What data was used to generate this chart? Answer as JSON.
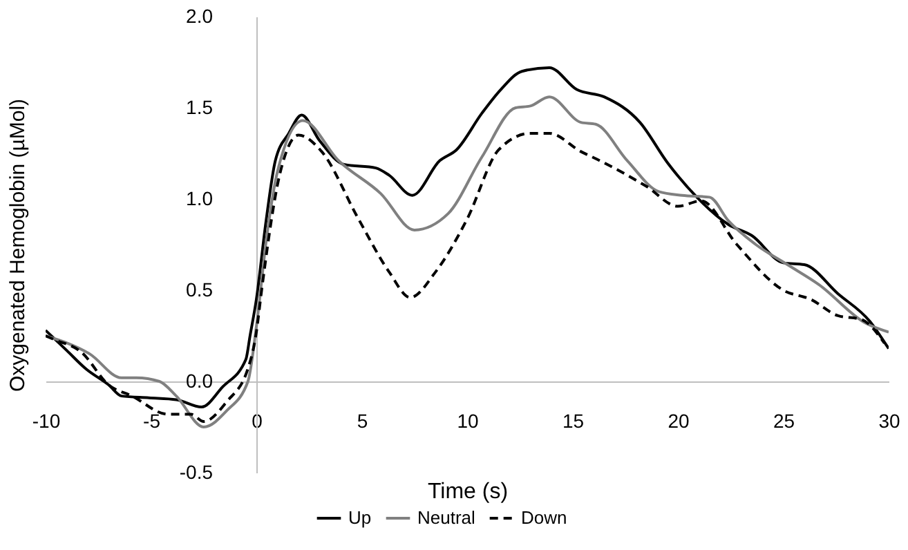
{
  "chart_data": {
    "type": "line",
    "xlabel": "Time (s)",
    "ylabel": "Oxygenated Hemoglobin (µMol)",
    "xlim": [
      -10,
      30
    ],
    "xticks": [
      -10,
      -5,
      0,
      5,
      10,
      15,
      20,
      25,
      30
    ],
    "ylim": [
      -0.5,
      2.0
    ],
    "yticks": [
      -0.5,
      {
        "value": 0,
        "label": "0.0"
      },
      0.5,
      {
        "value": 1,
        "label": "1.0"
      },
      1.5,
      {
        "value": 2,
        "label": "2.0"
      }
    ],
    "grid": false,
    "legend": "bottom",
    "marker": "none",
    "series": [
      {
        "name": "Up",
        "color": "#000000",
        "line_style": "solid",
        "x": [
          -10,
          -9,
          -8.1,
          -7,
          -6.4,
          -5.1,
          -3.8,
          -2.6,
          -1.6,
          -0.5,
          -0.3,
          0,
          0.46,
          0.9,
          1.54,
          2.15,
          3,
          4.15,
          5.67,
          6.3,
          7.4,
          8.7,
          9.5,
          10.7,
          11.6,
          12.6,
          13.9,
          15.2,
          16.5,
          18.2,
          19.5,
          20.9,
          22.4,
          23.5,
          25,
          26,
          27.6,
          29.1,
          30
        ],
        "values": [
          0.28,
          0.17,
          0.07,
          -0.02,
          -0.08,
          -0.09,
          -0.1,
          -0.14,
          -0.03,
          0.12,
          0.25,
          0.45,
          0.88,
          1.21,
          1.36,
          1.46,
          1.32,
          1.19,
          1.17,
          1.13,
          1.02,
          1.21,
          1.27,
          1.47,
          1.6,
          1.7,
          1.72,
          1.6,
          1.56,
          1.42,
          1.2,
          1.01,
          0.86,
          0.8,
          0.65,
          0.64,
          0.48,
          0.33,
          0.18
        ]
      },
      {
        "name": "Neutral",
        "color": "#808080",
        "line_style": "solid",
        "x": [
          -10,
          -7.9,
          -6.4,
          -5.7,
          -4.6,
          -3.8,
          -2.5,
          -1.4,
          -0.4,
          0,
          0.5,
          1,
          2.2,
          3.9,
          5.9,
          7.5,
          9.1,
          10.7,
          12.3,
          13,
          13.9,
          15.4,
          16.1,
          17.6,
          19.1,
          20.2,
          21.5,
          22.4,
          23.7,
          25.2,
          26.7,
          28.9,
          30
        ],
        "values": [
          0.25,
          0.15,
          0.02,
          0.02,
          0.0,
          -0.08,
          -0.25,
          -0.16,
          0.0,
          0.3,
          0.8,
          1.15,
          1.43,
          1.21,
          1.03,
          0.83,
          0.92,
          1.23,
          1.5,
          1.51,
          1.56,
          1.42,
          1.41,
          1.21,
          1.04,
          1.02,
          1.01,
          0.88,
          0.75,
          0.64,
          0.53,
          0.32,
          0.27
        ]
      },
      {
        "name": "Down",
        "color": "#000000",
        "line_style": "dashed",
        "x": [
          -10,
          -9.6,
          -8.3,
          -7,
          -5.9,
          -4.2,
          -3.1,
          -2.5,
          -1.4,
          -0.4,
          0,
          0.25,
          1.1,
          2,
          3.1,
          4.8,
          6.3,
          7.3,
          8.5,
          10,
          11.5,
          13,
          13.9,
          15.4,
          16.3,
          18.5,
          20,
          21.1,
          22.8,
          25,
          26.3,
          27.6,
          28.7,
          29.8
        ],
        "values": [
          0.25,
          0.23,
          0.16,
          -0.02,
          -0.08,
          -0.18,
          -0.18,
          -0.22,
          -0.11,
          0.07,
          0.27,
          0.5,
          1.13,
          1.35,
          1.26,
          0.9,
          0.6,
          0.46,
          0.6,
          0.89,
          1.27,
          1.36,
          1.36,
          1.26,
          1.21,
          1.07,
          0.96,
          0.99,
          0.75,
          0.5,
          0.45,
          0.36,
          0.34,
          0.21
        ]
      }
    ]
  }
}
